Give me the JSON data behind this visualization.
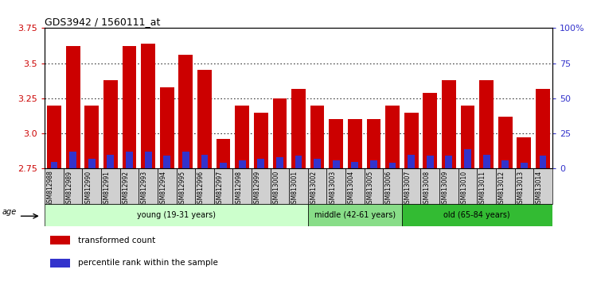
{
  "title": "GDS3942 / 1560111_at",
  "samples": [
    "GSM812988",
    "GSM812989",
    "GSM812990",
    "GSM812991",
    "GSM812992",
    "GSM812993",
    "GSM812994",
    "GSM812995",
    "GSM812996",
    "GSM812997",
    "GSM812998",
    "GSM812999",
    "GSM813000",
    "GSM813001",
    "GSM813002",
    "GSM813003",
    "GSM813004",
    "GSM813005",
    "GSM813006",
    "GSM813007",
    "GSM813008",
    "GSM813009",
    "GSM813010",
    "GSM813011",
    "GSM813012",
    "GSM813013",
    "GSM813014"
  ],
  "red_values": [
    3.2,
    3.62,
    3.2,
    3.38,
    3.62,
    3.64,
    3.33,
    3.56,
    3.45,
    2.96,
    3.2,
    3.15,
    3.25,
    3.32,
    3.2,
    3.1,
    3.1,
    3.1,
    3.2,
    3.15,
    3.29,
    3.38,
    3.2,
    3.38,
    3.12,
    2.97,
    3.32
  ],
  "blue_values_pct": [
    5,
    12,
    7,
    10,
    12,
    12,
    9,
    12,
    10,
    4,
    6,
    7,
    8,
    9,
    7,
    6,
    5,
    6,
    4,
    10,
    9,
    9,
    14,
    10,
    6,
    4,
    9
  ],
  "ylim_left": [
    2.75,
    3.75
  ],
  "ylim_right": [
    0,
    100
  ],
  "yticks_left": [
    2.75,
    3.0,
    3.25,
    3.5,
    3.75
  ],
  "yticks_right": [
    0,
    25,
    50,
    75,
    100
  ],
  "ytick_labels_right": [
    "0",
    "25",
    "50",
    "75",
    "100%"
  ],
  "bar_color_red": "#cc0000",
  "bar_color_blue": "#3333cc",
  "groups": [
    {
      "label": "young (19-31 years)",
      "start": 0,
      "end": 13,
      "color": "#ccffcc"
    },
    {
      "label": "middle (42-61 years)",
      "start": 14,
      "end": 18,
      "color": "#88dd88"
    },
    {
      "label": "old (65-84 years)",
      "start": 19,
      "end": 26,
      "color": "#33bb33"
    }
  ],
  "legend_items": [
    {
      "label": "transformed count",
      "color": "#cc0000"
    },
    {
      "label": "percentile rank within the sample",
      "color": "#3333cc"
    }
  ],
  "background_color": "#ffffff",
  "plot_bg_color": "#ffffff",
  "tick_label_color_left": "#cc0000",
  "tick_label_color_right": "#3333cc",
  "bar_baseline": 2.75,
  "xtick_bg_color": "#d0d0d0"
}
